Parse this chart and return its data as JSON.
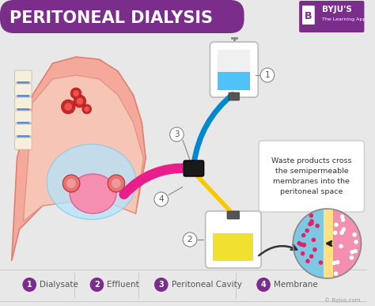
{
  "title": "PERITONEAL DIALYSIS",
  "title_bg_color": "#7B2D8B",
  "title_text_color": "#FFFFFF",
  "bg_color": "#E8E8E8",
  "legend_items": [
    {
      "num": "1",
      "label": "Dialysate"
    },
    {
      "num": "2",
      "label": "Effluent"
    },
    {
      "num": "3",
      "label": "Peritoneal Cavity"
    },
    {
      "num": "4",
      "label": "Membrane"
    }
  ],
  "legend_circle_color": "#7B2D8B",
  "legend_text_color": "#555555",
  "annotation_box_text": "Waste products cross\nthe semipermeable\nmembranes into the\nperitoneal space",
  "byju_logo_color": "#7B2D8B",
  "copyright_text": "© Byjus.com",
  "label1_color": "#4FC3F7",
  "label2_color": "#F9E04B",
  "label3_color": "#E91E8C",
  "label4_color": "#222222"
}
